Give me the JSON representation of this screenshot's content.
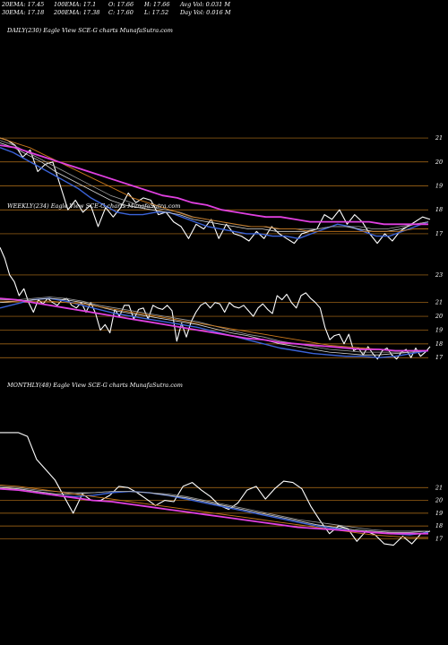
{
  "header": {
    "row1": [
      "20EMA: 17.45",
      "100EMA: 17.1",
      "O: 17.66",
      "H: 17.66",
      "Avg Vol: 0.031 M"
    ],
    "row2": [
      "30EMA: 17.18",
      "200EMA: 17.38",
      "C: 17.60",
      "L: 17.52",
      "Day Vol: 0.016  M"
    ]
  },
  "colors": {
    "background": "#000000",
    "price": "#ffffff",
    "ema20": "#3b63d8",
    "ema_light": "#d8d8d8",
    "ema_mid": "#a0a0a0",
    "ema_long": "#c8781c",
    "ema200": "#e040e0",
    "gridline": "#b8741a"
  },
  "chart_data": [
    {
      "type": "line",
      "title": "DAILY(230) Eagle  View  SCE-G charts MunafaSutra.com",
      "y_ticks": [
        21,
        20,
        19,
        18,
        17
      ],
      "ylim": [
        16.1,
        21.9
      ],
      "series": [
        {
          "role": "price",
          "values": [
            21.0,
            20.9,
            20.7,
            20.2,
            20.5,
            19.6,
            19.9,
            20.0,
            19.0,
            18.0,
            18.4,
            17.9,
            18.2,
            17.3,
            18.1,
            17.7,
            18.1,
            18.7,
            18.3,
            18.5,
            18.4,
            17.8,
            17.9,
            17.5,
            17.3,
            16.8,
            17.4,
            17.2,
            17.6,
            16.8,
            17.4,
            17.0,
            16.9,
            16.7,
            17.1,
            16.8,
            17.3,
            17.0,
            16.8,
            16.6,
            17.0,
            17.1,
            17.2,
            17.8,
            17.6,
            18.0,
            17.4,
            17.8,
            17.5,
            17.0,
            16.6,
            17.0,
            16.7,
            17.1,
            17.3,
            17.5,
            17.7,
            17.6
          ]
        },
        {
          "role": "ema20",
          "values": [
            20.6,
            20.4,
            20.1,
            19.8,
            19.5,
            19.2,
            18.9,
            18.5,
            18.2,
            17.9,
            17.8,
            17.8,
            17.9,
            17.9,
            17.7,
            17.5,
            17.3,
            17.2,
            17.1,
            17.0,
            17.0,
            16.9,
            16.9,
            16.8,
            17.0,
            17.2,
            17.4,
            17.3,
            17.1,
            16.9,
            16.9,
            17.1,
            17.3,
            17.5
          ]
        },
        {
          "role": "ema_light",
          "values": [
            20.8,
            20.6,
            20.3,
            20.0,
            19.6,
            19.3,
            19.0,
            18.7,
            18.4,
            18.2,
            18.1,
            18.0,
            17.9,
            17.8,
            17.6,
            17.5,
            17.4,
            17.3,
            17.2,
            17.2,
            17.1,
            17.1,
            17.1,
            17.2,
            17.3,
            17.3,
            17.2,
            17.1,
            17.1,
            17.2,
            17.4,
            17.5
          ]
        },
        {
          "role": "ema_mid",
          "values": [
            20.9,
            20.7,
            20.4,
            20.1,
            19.8,
            19.5,
            19.2,
            18.9,
            18.6,
            18.4,
            18.2,
            18.1,
            18.0,
            17.9,
            17.7,
            17.6,
            17.5,
            17.4,
            17.3,
            17.3,
            17.2,
            17.2,
            17.2,
            17.2,
            17.3,
            17.3,
            17.3,
            17.2,
            17.2,
            17.3,
            17.4,
            17.5
          ]
        },
        {
          "role": "ema_long",
          "values": [
            21.0,
            20.8,
            20.6,
            20.3,
            20.0,
            19.7,
            19.4,
            19.1,
            18.8,
            18.5,
            18.3,
            18.1,
            17.9,
            17.7,
            17.6,
            17.5,
            17.4,
            17.3,
            17.3,
            17.2,
            17.2,
            17.1,
            17.1,
            17.1,
            17.1,
            17.1,
            17.1,
            17.1,
            17.2,
            17.2
          ]
        },
        {
          "role": "ema200",
          "values": [
            20.7,
            20.6,
            20.4,
            20.2,
            20.0,
            19.8,
            19.6,
            19.4,
            19.2,
            19.0,
            18.8,
            18.6,
            18.5,
            18.3,
            18.2,
            18.0,
            17.9,
            17.8,
            17.7,
            17.7,
            17.6,
            17.5,
            17.5,
            17.5,
            17.5,
            17.5,
            17.4,
            17.4,
            17.4,
            17.4
          ]
        }
      ]
    },
    {
      "type": "line",
      "title": "WEEKLY(234) Eagle  View  SCE-G charts MunafaSutra.com",
      "y_ticks": [
        23,
        21,
        20,
        19,
        18,
        17
      ],
      "ylim": [
        16.3,
        24.1
      ],
      "series": [
        {
          "role": "price",
          "values": [
            25.0,
            24.2,
            23.0,
            22.5,
            21.5,
            22.0,
            21.0,
            20.3,
            21.2,
            20.9,
            21.3,
            21.0,
            20.8,
            21.2,
            21.3,
            20.8,
            20.6,
            21.0,
            20.3,
            21.0,
            20.2,
            19.0,
            19.4,
            18.8,
            20.5,
            20.0,
            20.8,
            20.8,
            19.8,
            20.5,
            20.6,
            19.8,
            20.8,
            20.6,
            20.5,
            20.8,
            20.4,
            18.2,
            19.5,
            18.5,
            19.6,
            20.3,
            20.8,
            21.0,
            20.6,
            21.0,
            20.9,
            20.3,
            21.0,
            20.7,
            20.6,
            20.8,
            20.4,
            20.0,
            20.6,
            20.9,
            20.5,
            20.2,
            21.5,
            21.2,
            21.6,
            21.0,
            20.6,
            21.5,
            21.7,
            21.3,
            21.0,
            20.6,
            19.2,
            18.3,
            18.6,
            18.7,
            18.0,
            18.7,
            17.5,
            17.7,
            17.2,
            17.8,
            17.3,
            16.9,
            17.5,
            17.7,
            17.2,
            16.9,
            17.4,
            17.6,
            17.0,
            17.7,
            17.1,
            17.4,
            17.8
          ]
        },
        {
          "role": "ema20",
          "values": [
            20.6,
            20.9,
            21.2,
            21.3,
            21.1,
            20.8,
            20.5,
            20.2,
            20.0,
            19.8,
            19.6,
            19.4,
            19.2,
            18.9,
            18.6,
            18.3,
            18.0,
            17.7,
            17.5,
            17.3,
            17.2,
            17.1,
            17.1,
            17.0,
            17.1,
            17.3,
            17.5
          ]
        },
        {
          "role": "ema_light",
          "values": [
            21.0,
            21.1,
            21.2,
            21.3,
            21.2,
            21.0,
            20.7,
            20.4,
            20.2,
            20.0,
            19.8,
            19.6,
            19.4,
            19.1,
            18.8,
            18.6,
            18.3,
            18.0,
            17.8,
            17.6,
            17.4,
            17.3,
            17.2,
            17.2,
            17.3,
            17.4,
            17.5
          ]
        },
        {
          "role": "ema_mid",
          "values": [
            21.2,
            21.2,
            21.3,
            21.4,
            21.3,
            21.1,
            20.8,
            20.6,
            20.4,
            20.2,
            20.0,
            19.8,
            19.6,
            19.3,
            19.0,
            18.7,
            18.5,
            18.2,
            18.0,
            17.8,
            17.6,
            17.5,
            17.4,
            17.4,
            17.4,
            17.4,
            17.5
          ]
        },
        {
          "role": "ema_long",
          "values": [
            21.1,
            21.1,
            21.1,
            21.1,
            21.0,
            20.9,
            20.7,
            20.5,
            20.3,
            20.1,
            19.9,
            19.7,
            19.5,
            19.3,
            19.1,
            18.9,
            18.7,
            18.5,
            18.3,
            18.1,
            17.9,
            17.8,
            17.7,
            17.6,
            17.5,
            17.5,
            17.5
          ]
        },
        {
          "role": "ema200",
          "values": [
            21.3,
            21.2,
            21.0,
            20.8,
            20.6,
            20.4,
            20.2,
            20.0,
            19.8,
            19.6,
            19.4,
            19.2,
            19.0,
            18.8,
            18.6,
            18.4,
            18.3,
            18.1,
            18.0,
            17.9,
            17.8,
            17.7,
            17.6,
            17.6,
            17.5,
            17.5,
            17.5
          ]
        }
      ]
    },
    {
      "type": "line",
      "title": "MONTHLY(48) Eagle  View  SCE-G charts MunafaSutra.com",
      "y_ticks": [
        21,
        20,
        19,
        18,
        17
      ],
      "ylim": [
        16.4,
        24.8
      ],
      "series": [
        {
          "role": "price",
          "values": [
            25.3,
            25.3,
            25.3,
            25.0,
            23.2,
            22.4,
            21.6,
            20.3,
            19.0,
            20.5,
            20.0,
            20.0,
            20.4,
            21.1,
            21.0,
            20.6,
            20.1,
            19.6,
            20.0,
            19.9,
            21.1,
            21.4,
            20.8,
            20.3,
            19.6,
            19.3,
            19.8,
            20.8,
            21.1,
            20.1,
            20.9,
            21.5,
            21.4,
            20.9,
            19.5,
            18.4,
            17.4,
            18.0,
            17.8,
            16.8,
            17.6,
            17.3,
            16.6,
            16.5,
            17.2,
            16.6,
            17.4,
            17.6
          ]
        },
        {
          "role": "ema20",
          "values": [
            20.9,
            20.8,
            20.6,
            20.4,
            20.3,
            20.4,
            20.6,
            20.7,
            20.6,
            20.4,
            20.1,
            19.8,
            19.5,
            19.2,
            18.9,
            18.6,
            18.3,
            18.0,
            17.8,
            17.6,
            17.5,
            17.4,
            17.3,
            17.5
          ]
        },
        {
          "role": "ema_light",
          "values": [
            21.0,
            20.9,
            20.7,
            20.5,
            20.5,
            20.6,
            20.7,
            20.7,
            20.6,
            20.4,
            20.2,
            19.9,
            19.6,
            19.3,
            19.0,
            18.7,
            18.4,
            18.1,
            17.9,
            17.7,
            17.6,
            17.5,
            17.5,
            17.6
          ]
        },
        {
          "role": "ema_mid",
          "values": [
            21.1,
            21.0,
            20.8,
            20.7,
            20.6,
            20.6,
            20.7,
            20.7,
            20.6,
            20.5,
            20.3,
            20.0,
            19.7,
            19.4,
            19.1,
            18.8,
            18.5,
            18.3,
            18.1,
            17.9,
            17.7,
            17.6,
            17.6,
            17.6
          ]
        },
        {
          "role": "ema_long",
          "values": [
            21.2,
            21.1,
            20.9,
            20.7,
            20.5,
            20.3,
            20.1,
            19.9,
            19.7,
            19.5,
            19.3,
            19.1,
            18.9,
            18.7,
            18.5,
            18.3,
            18.1,
            17.9,
            17.7,
            17.5,
            17.3,
            17.2,
            17.1,
            17.1
          ]
        },
        {
          "role": "ema200",
          "values": [
            20.9,
            20.8,
            20.6,
            20.4,
            20.2,
            20.0,
            19.9,
            19.7,
            19.5,
            19.3,
            19.1,
            18.9,
            18.7,
            18.5,
            18.3,
            18.1,
            17.9,
            17.8,
            17.7,
            17.6,
            17.5,
            17.4,
            17.4,
            17.4
          ]
        }
      ]
    }
  ]
}
